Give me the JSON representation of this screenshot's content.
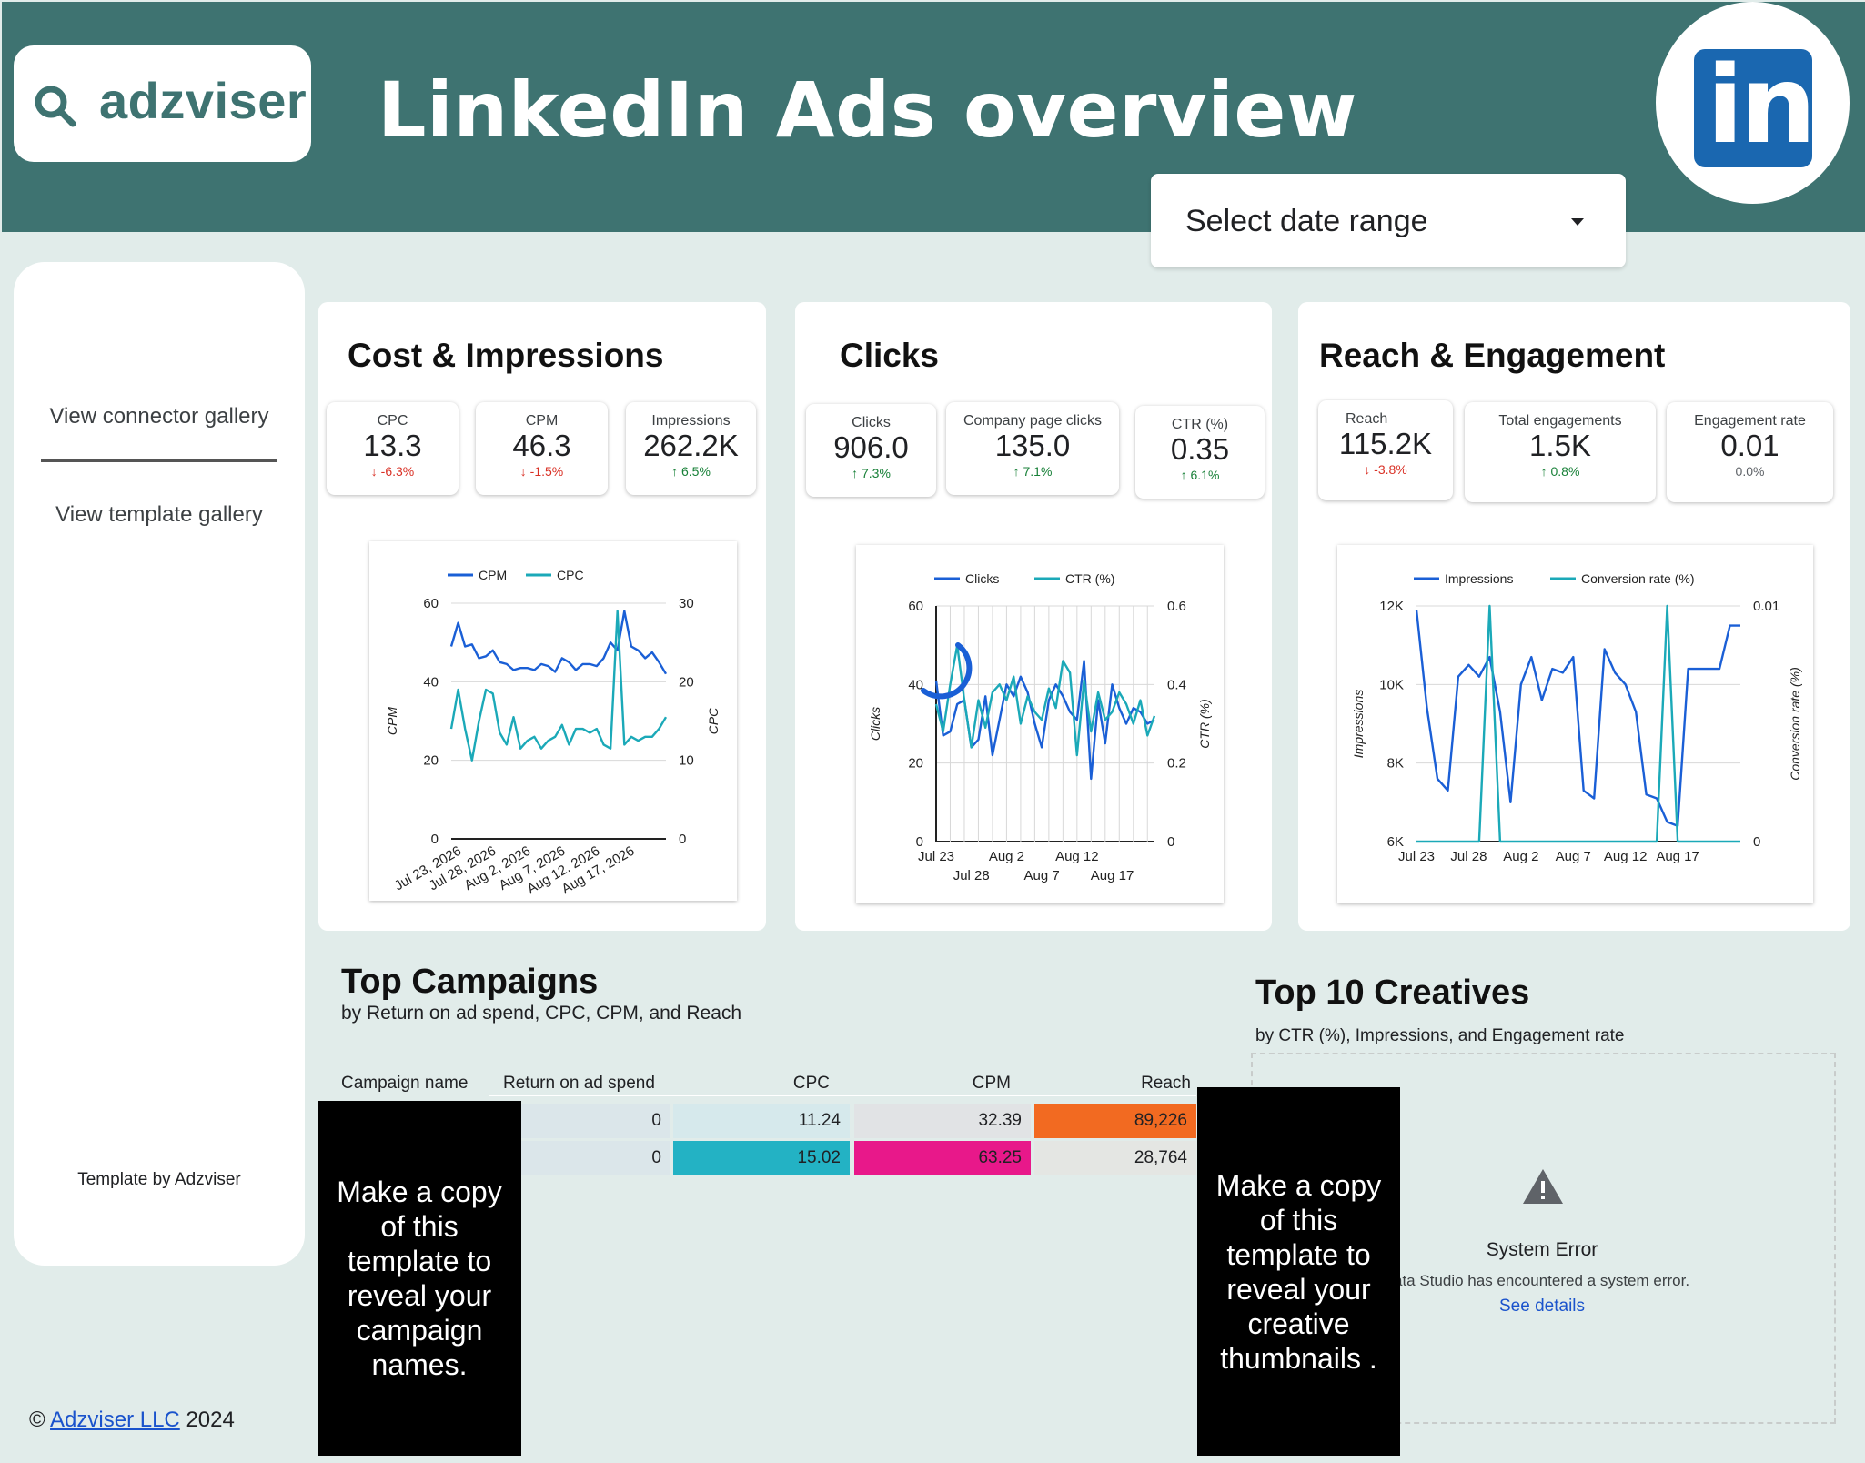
{
  "header": {
    "brand": "adzviser",
    "title": "LinkedIn Ads overview",
    "linkedin_logo_text": "in",
    "date_range_label": "Select date range"
  },
  "sidebar": {
    "connector_gallery": "View connector gallery",
    "template_gallery": "View template gallery",
    "template_by": "Template by Adzviser",
    "copyright_symbol": "©",
    "copyright_link": "Adzviser LLC",
    "copyright_year": "2024"
  },
  "cost_impressions": {
    "title": "Cost & Impressions",
    "kpis": [
      {
        "label": "CPC",
        "value": "13.3",
        "delta": "-6.3%",
        "dir": "down"
      },
      {
        "label": "CPM",
        "value": "46.3",
        "delta": "-1.5%",
        "dir": "down"
      },
      {
        "label": "Impressions",
        "value": "262.2K",
        "delta": "6.5%",
        "dir": "up"
      }
    ]
  },
  "clicks": {
    "title": "Clicks",
    "kpis": [
      {
        "label": "Clicks",
        "value": "906.0",
        "delta": "7.3%",
        "dir": "up"
      },
      {
        "label": "Company page clicks",
        "value": "135.0",
        "delta": "7.1%",
        "dir": "up"
      },
      {
        "label": "CTR (%)",
        "value": "0.35",
        "delta": "6.1%",
        "dir": "up"
      }
    ]
  },
  "reach_engagement": {
    "title": "Reach & Engagement",
    "kpis": [
      {
        "label": "Reach",
        "value": "115.2K",
        "delta": "-3.8%",
        "dir": "down"
      },
      {
        "label": "Total engagements",
        "value": "1.5K",
        "delta": "0.8%",
        "dir": "up"
      },
      {
        "label": "Engagement rate",
        "value": "0.01",
        "delta": "0.0%",
        "dir": "flat"
      }
    ]
  },
  "chart_data": [
    {
      "type": "line",
      "legend_position": "top",
      "grid": true,
      "x": [
        "Jul 23, 2026",
        "Jul 24",
        "Jul 25",
        "Jul 26",
        "Jul 27",
        "Jul 28, 2026",
        "Jul 29",
        "Jul 30",
        "Jul 31",
        "Aug 1",
        "Aug 2, 2026",
        "Aug 3",
        "Aug 4",
        "Aug 5",
        "Aug 6",
        "Aug 7, 2026",
        "Aug 8",
        "Aug 9",
        "Aug 10",
        "Aug 11",
        "Aug 12, 2026",
        "Aug 13",
        "Aug 14",
        "Aug 15",
        "Aug 16",
        "Aug 17, 2026",
        "Aug 18",
        "Aug 19",
        "Aug 20",
        "Aug 21",
        "Aug 22",
        "Aug 23"
      ],
      "x_tick_labels": [
        "Jul 23, 2026",
        "Jul 28, 2026",
        "Aug 2, 2026",
        "Aug 7, 2026",
        "Aug 12, 2026",
        "Aug 17, 2026"
      ],
      "xlabel": "",
      "ylabel": "CPM",
      "ylabel_right": "CPC",
      "ylim": [
        0,
        60
      ],
      "ylim_right": [
        0,
        30
      ],
      "yticks": [
        0,
        20,
        40,
        60
      ],
      "yticks_right": [
        0,
        10,
        20,
        30
      ],
      "series": [
        {
          "name": "CPM",
          "axis": "left",
          "color": "#1a5fd6",
          "values": [
            49,
            55,
            49,
            49.5,
            46,
            46.5,
            48,
            45,
            44.5,
            43,
            43.5,
            43.5,
            43,
            44.5,
            44,
            42.5,
            46,
            45,
            43,
            44.5,
            44.5,
            44,
            46,
            50,
            48,
            58,
            49,
            48,
            46,
            47.5,
            45,
            42
          ]
        },
        {
          "name": "CPC",
          "axis": "right",
          "color": "#1ba9b8",
          "values": [
            14,
            19,
            14,
            10,
            15,
            19,
            18.5,
            13.5,
            12,
            15.5,
            11.5,
            12.5,
            13,
            11.5,
            12.5,
            13,
            14.5,
            12,
            14,
            14,
            13.5,
            14,
            12,
            11.5,
            29,
            12,
            13,
            12.5,
            13,
            13,
            14,
            15.5
          ]
        }
      ]
    },
    {
      "type": "line",
      "legend_position": "top",
      "grid": true,
      "x": [
        "Jul 23",
        "Jul 24",
        "Jul 25",
        "Jul 26",
        "Jul 27",
        "Jul 28",
        "Jul 29",
        "Jul 30",
        "Jul 31",
        "Aug 1",
        "Aug 2",
        "Aug 3",
        "Aug 4",
        "Aug 5",
        "Aug 6",
        "Aug 7",
        "Aug 8",
        "Aug 9",
        "Aug 10",
        "Aug 11",
        "Aug 12",
        "Aug 13",
        "Aug 14",
        "Aug 15",
        "Aug 16",
        "Aug 17",
        "Aug 18",
        "Aug 19",
        "Aug 20",
        "Aug 21",
        "Aug 22",
        "Aug 23"
      ],
      "x_tick_labels": [
        "Jul 23",
        "Jul 28",
        "Aug 2",
        "Aug 7",
        "Aug 12",
        "Aug 17"
      ],
      "x_tick_labels_row2": [
        "Jul 28",
        "Aug 7",
        "Aug 17"
      ],
      "ylabel": "Clicks",
      "ylabel_right": "CTR (%)",
      "ylim": [
        0,
        60
      ],
      "ylim_right": [
        0,
        0.6
      ],
      "yticks": [
        0,
        20,
        40,
        60
      ],
      "yticks_right": [
        0,
        0.2,
        0.4,
        0.6
      ],
      "series": [
        {
          "name": "Clicks",
          "axis": "left",
          "color": "#1a5fd6",
          "values": [
            41,
            27,
            28,
            35,
            36,
            24,
            26,
            37,
            22,
            31,
            40,
            37,
            42,
            38,
            30,
            24,
            36,
            40,
            37,
            33,
            31,
            46,
            16,
            36,
            25,
            40,
            34,
            30,
            34,
            33,
            30,
            31
          ]
        },
        {
          "name": "CTR (%)",
          "axis": "right",
          "color": "#1ba9b8",
          "values": [
            0.35,
            0.28,
            0.4,
            0.5,
            0.36,
            0.24,
            0.36,
            0.29,
            0.38,
            0.4,
            0.36,
            0.42,
            0.3,
            0.37,
            0.33,
            0.31,
            0.39,
            0.34,
            0.46,
            0.43,
            0.22,
            0.41,
            0.28,
            0.38,
            0.31,
            0.33,
            0.38,
            0.35,
            0.3,
            0.36,
            0.27,
            0.32
          ]
        }
      ]
    },
    {
      "type": "line",
      "legend_position": "top",
      "grid": true,
      "x": [
        "Jul 23",
        "Jul 24",
        "Jul 25",
        "Jul 26",
        "Jul 27",
        "Jul 28",
        "Jul 29",
        "Jul 30",
        "Jul 31",
        "Aug 1",
        "Aug 2",
        "Aug 3",
        "Aug 4",
        "Aug 5",
        "Aug 6",
        "Aug 7",
        "Aug 8",
        "Aug 9",
        "Aug 10",
        "Aug 11",
        "Aug 12",
        "Aug 13",
        "Aug 14",
        "Aug 15",
        "Aug 16",
        "Aug 17",
        "Aug 18",
        "Aug 19",
        "Aug 20",
        "Aug 21",
        "Aug 22",
        "Aug 23"
      ],
      "x_tick_labels": [
        "Jul 23",
        "Jul 28",
        "Aug 2",
        "Aug 7",
        "Aug 12",
        "Aug 17"
      ],
      "ylabel": "Impressions",
      "ylabel_right": "Conversion rate (%)",
      "ylim": [
        6000,
        12000
      ],
      "ylim_right": [
        0,
        0.01
      ],
      "yticks": [
        6000,
        8000,
        10000,
        12000
      ],
      "ytick_labels": [
        "6K",
        "8K",
        "10K",
        "12K"
      ],
      "yticks_right": [
        0,
        0.01
      ],
      "series": [
        {
          "name": "Impressions",
          "axis": "left",
          "color": "#1a5fd6",
          "values": [
            11900,
            9400,
            7600,
            7300,
            10200,
            10500,
            10200,
            10700,
            9300,
            7000,
            10000,
            10700,
            9600,
            10400,
            10300,
            10700,
            7300,
            7100,
            10900,
            10300,
            10000,
            9300,
            7200,
            7100,
            6500,
            6400,
            10400,
            10400,
            10400,
            10400,
            11500,
            11500
          ]
        },
        {
          "name": "Conversion rate (%)",
          "axis": "right",
          "color": "#1ba9b8",
          "values": [
            0,
            0,
            0,
            0,
            0,
            0,
            0,
            0.01,
            0,
            0,
            0,
            0,
            0,
            0,
            0,
            0,
            0,
            0,
            0,
            0,
            0,
            0,
            0,
            0,
            0.01,
            0,
            0,
            0,
            0,
            0,
            0,
            0
          ]
        }
      ]
    }
  ],
  "top_campaigns": {
    "title": "Top Campaigns",
    "subtitle": "by Return on ad spend, CPC, CPM, and Reach",
    "columns": [
      "Campaign name",
      "Return on ad spend",
      "CPC",
      "CPM",
      "Reach"
    ],
    "rows": [
      {
        "roas": "0",
        "cpc": "11.24",
        "cpm": "32.39",
        "reach": "89,226"
      },
      {
        "roas": "0",
        "cpc": "15.02",
        "cpm": "63.25",
        "reach": "28,764"
      }
    ],
    "overlay_text": "Make a copy of this template to reveal your campaign names."
  },
  "top_creatives": {
    "title": "Top 10 Creatives",
    "subtitle": "by CTR (%), Impressions, and Engagement rate",
    "error_title": "System Error",
    "error_message": "ata Studio has encountered a system error.",
    "error_link": "See details",
    "overlay_text": "Make a copy of this template to reveal your creative thumbnails ."
  },
  "colors": {
    "header_bg": "#3e7371",
    "page_bg": "#e1ecea",
    "series_dark": "#1a5fd6",
    "series_light": "#1ba9b8",
    "heat_orange": "#f26a21",
    "heat_teal": "#23b2c4",
    "heat_magenta": "#e8188a"
  }
}
